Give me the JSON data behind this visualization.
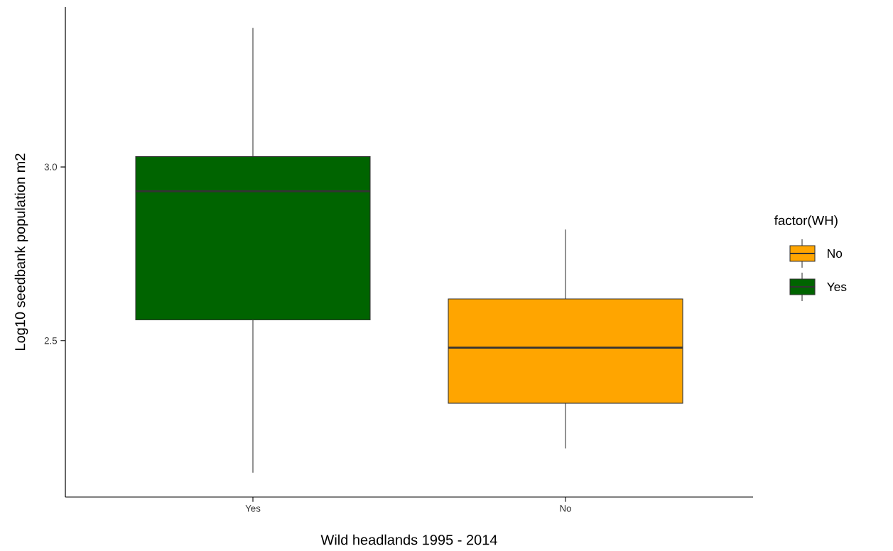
{
  "chart_data": {
    "type": "box",
    "xlabel": "Wild headlands 1995 - 2014",
    "ylabel": "Log10 seedbank population m2",
    "legend_title": "factor(WH)",
    "legend": "right",
    "grid": false,
    "categories": [
      "Yes",
      "No"
    ],
    "ylim": [
      2.05,
      3.46
    ],
    "yticks": [
      {
        "value": 2.5,
        "label": "2.5"
      },
      {
        "value": 3.0,
        "label": "3.0"
      }
    ],
    "series": [
      {
        "name": "No",
        "color": "#ffa500",
        "boxes": [
          null,
          {
            "low": 2.19,
            "q1": 2.32,
            "median": 2.48,
            "q3": 2.62,
            "high": 2.82
          }
        ]
      },
      {
        "name": "Yes",
        "color": "#006400",
        "boxes": [
          {
            "low": 2.12,
            "q1": 2.56,
            "median": 2.93,
            "q3": 3.03,
            "high": 3.4
          },
          null
        ]
      }
    ]
  }
}
